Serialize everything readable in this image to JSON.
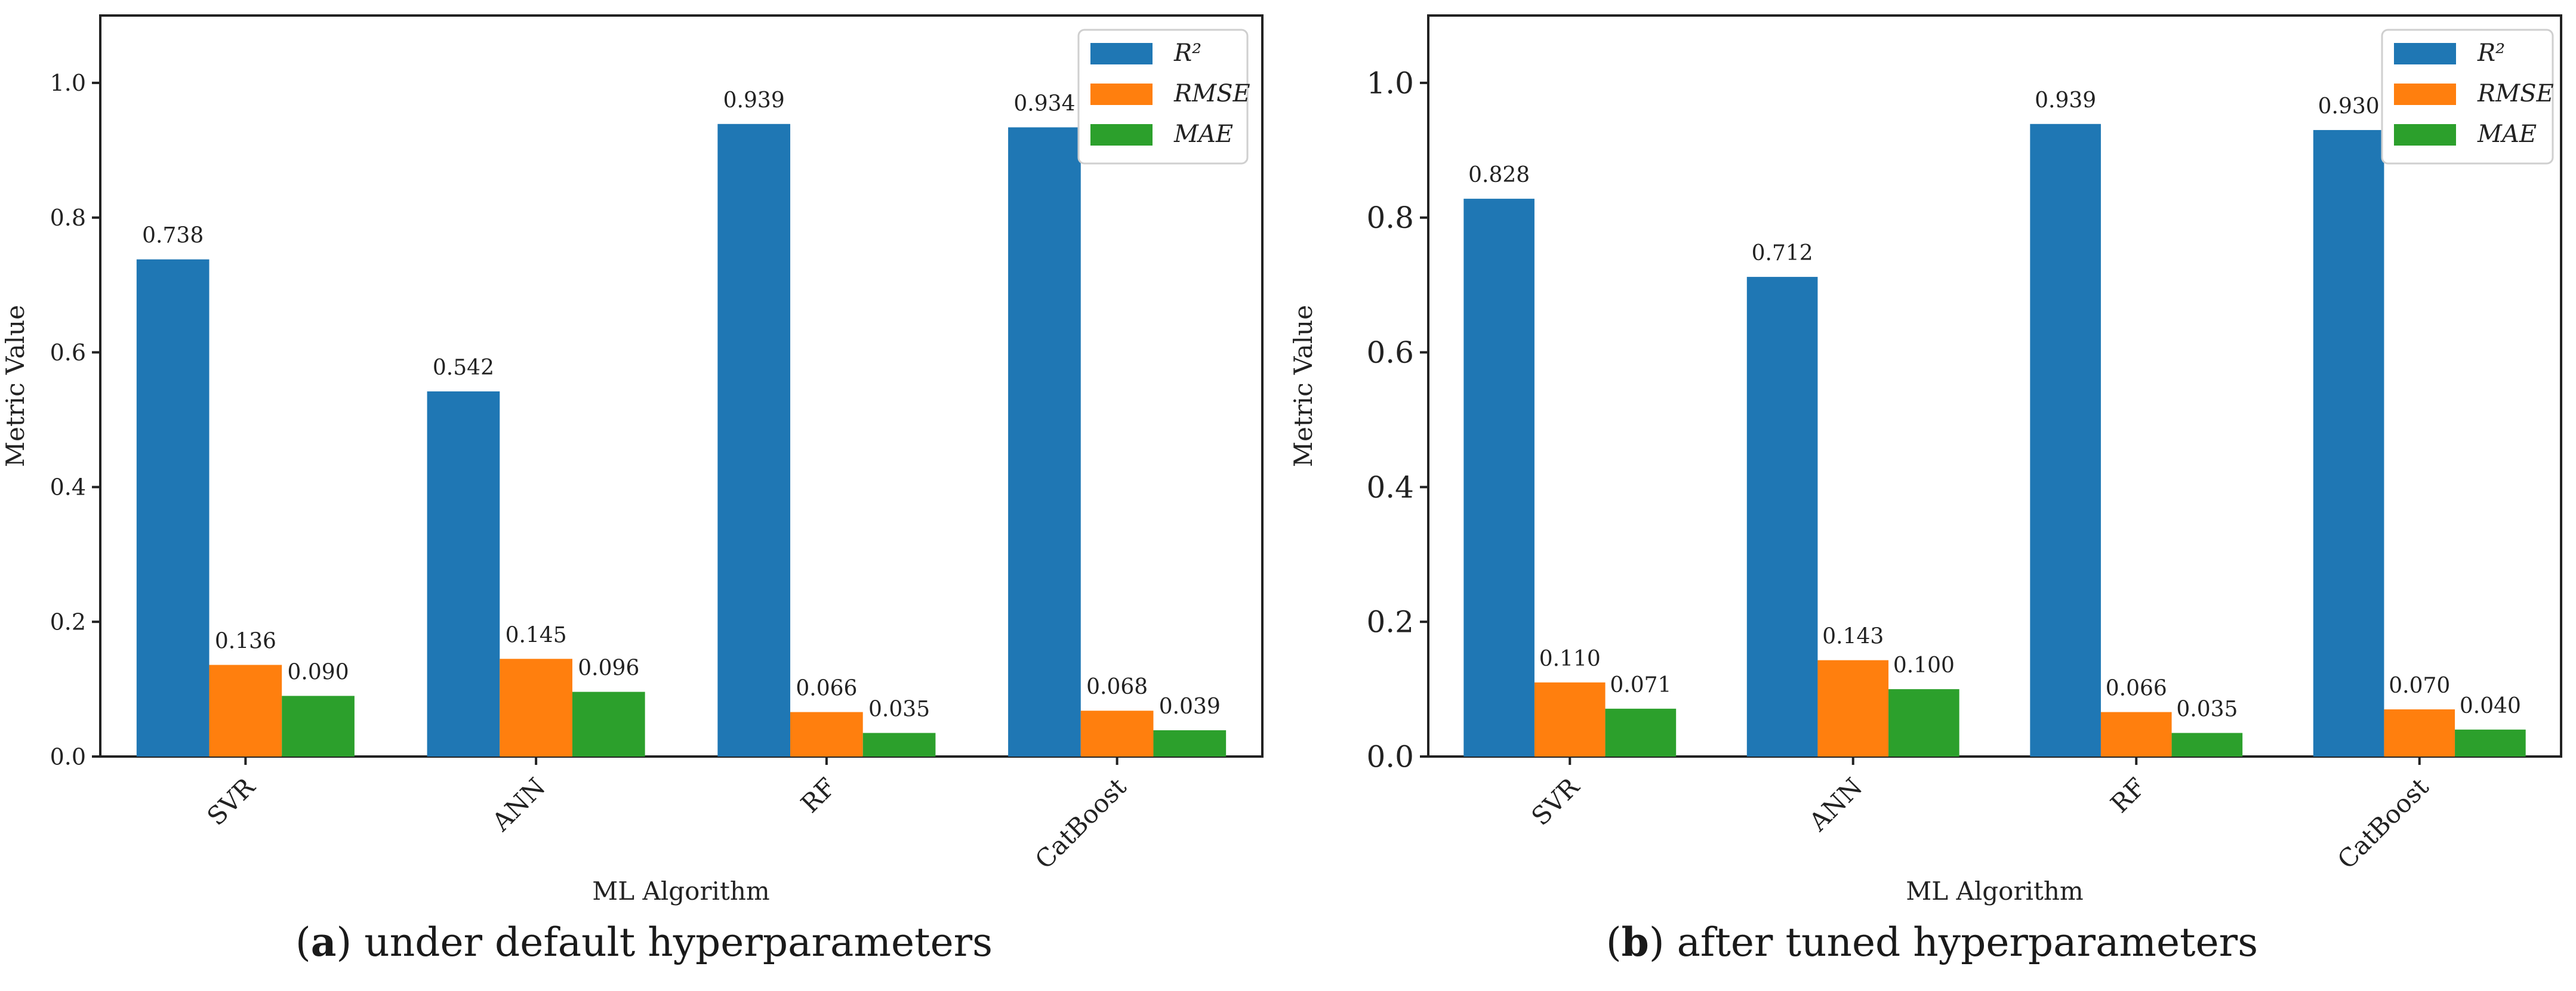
{
  "chart_data": [
    {
      "type": "bar",
      "panel_letter": "a",
      "caption": "under default hyperparameters",
      "xlabel": "ML Algorithm",
      "ylabel": "Metric Value",
      "categories": [
        "SVR",
        "ANN",
        "RF",
        "CatBoost"
      ],
      "ylim": [
        0,
        1.1
      ],
      "yticks": [
        "0.0",
        "0.2",
        "0.4",
        "0.6",
        "0.8",
        "1.0"
      ],
      "grid": false,
      "legend_position": "top-right",
      "series": [
        {
          "name": "R²",
          "color": "#1f77b4",
          "values": [
            0.738,
            0.542,
            0.939,
            0.934
          ],
          "labels": [
            "0.738",
            "0.542",
            "0.939",
            "0.934"
          ]
        },
        {
          "name": "RMSE",
          "color": "#ff7f0e",
          "values": [
            0.136,
            0.145,
            0.066,
            0.068
          ],
          "labels": [
            "0.136",
            "0.145",
            "0.066",
            "0.068"
          ]
        },
        {
          "name": "MAE",
          "color": "#2ca02c",
          "values": [
            0.09,
            0.096,
            0.035,
            0.039
          ],
          "labels": [
            "0.090",
            "0.096",
            "0.035",
            "0.039"
          ]
        }
      ]
    },
    {
      "type": "bar",
      "panel_letter": "b",
      "caption": "after tuned hyperparameters",
      "xlabel": "ML Algorithm",
      "ylabel": "Metric Value",
      "categories": [
        "SVR",
        "ANN",
        "RF",
        "CatBoost"
      ],
      "ylim": [
        0,
        1.1
      ],
      "yticks": [
        "0.0",
        "0.2",
        "0.4",
        "0.6",
        "0.8",
        "1.0"
      ],
      "grid": false,
      "legend_position": "top-right",
      "series": [
        {
          "name": "R²",
          "color": "#1f77b4",
          "values": [
            0.828,
            0.712,
            0.939,
            0.93
          ],
          "labels": [
            "0.828",
            "0.712",
            "0.939",
            "0.930"
          ]
        },
        {
          "name": "RMSE",
          "color": "#ff7f0e",
          "values": [
            0.11,
            0.143,
            0.066,
            0.07
          ],
          "labels": [
            "0.110",
            "0.143",
            "0.066",
            "0.070"
          ]
        },
        {
          "name": "MAE",
          "color": "#2ca02c",
          "values": [
            0.071,
            0.1,
            0.035,
            0.04
          ],
          "labels": [
            "0.071",
            "0.100",
            "0.035",
            "0.040"
          ]
        }
      ]
    }
  ]
}
